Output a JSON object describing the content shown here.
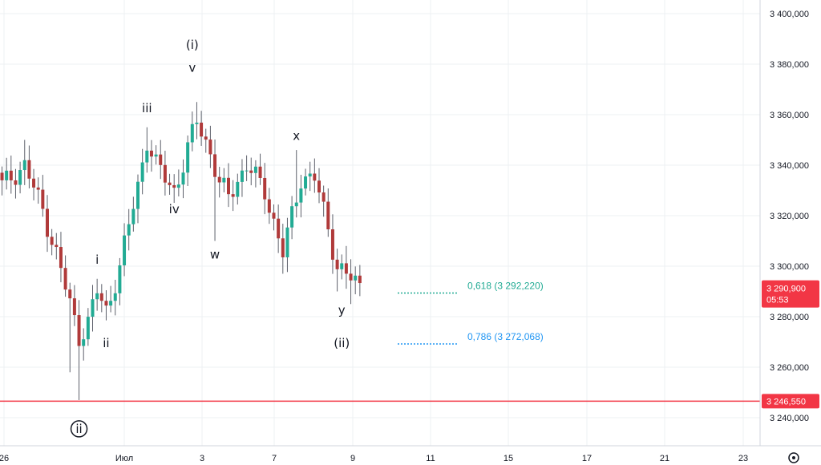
{
  "chart_data": {
    "type": "candlestick",
    "title": "",
    "xlabel": "",
    "ylabel": "",
    "ylim": [
      3230000,
      3405000
    ],
    "grid": true,
    "y_ticks": [
      "3 240,000",
      "3 260,000",
      "3 280,000",
      "3 300,000",
      "3 320,000",
      "3 340,000",
      "3 360,000",
      "3 380,000",
      "3 400,000"
    ],
    "x_ticks": [
      "26",
      "Июл",
      "3",
      "7",
      "9",
      "11",
      "15",
      "17",
      "21",
      "23"
    ],
    "support_level": {
      "value": 3246550,
      "label": "3 246,550",
      "color": "#f23645"
    },
    "current_price": {
      "label": "3 290,900",
      "countdown": "05:53",
      "color": "#f23645"
    },
    "fib_levels": [
      {
        "label": "0,618 (3 292,220)",
        "value": 3292220,
        "color": "#22ab94"
      },
      {
        "label": "0,786 (3 272,068)",
        "value": 3272068,
        "color": "#2196f3"
      }
    ],
    "wave_labels": [
      {
        "text": "i",
        "value": 3301000,
        "idx": 21
      },
      {
        "text": "ii",
        "value": 3268000,
        "idx": 23
      },
      {
        "text": "iii",
        "value": 3361000,
        "idx": 32
      },
      {
        "text": "iv",
        "value": 3321000,
        "idx": 38
      },
      {
        "text": "(i)",
        "value": 3386000,
        "idx": 42
      },
      {
        "text": "v",
        "value": 3377000,
        "idx": 42
      },
      {
        "text": "w",
        "value": 3303000,
        "idx": 47
      },
      {
        "text": "x",
        "value": 3350000,
        "idx": 65
      },
      {
        "text": "y",
        "value": 3281000,
        "idx": 75
      },
      {
        "text": "(ii)",
        "value": 3268000,
        "idx": 75
      },
      {
        "text": "ii",
        "value": 3234000,
        "idx": 17,
        "circled": true
      }
    ],
    "colors": {
      "up": "#22ab94",
      "down": "#b03a3a",
      "wick": "#5d606b",
      "grid": "#eef0f3"
    }
  },
  "icons": {
    "settings": "settings-icon"
  }
}
